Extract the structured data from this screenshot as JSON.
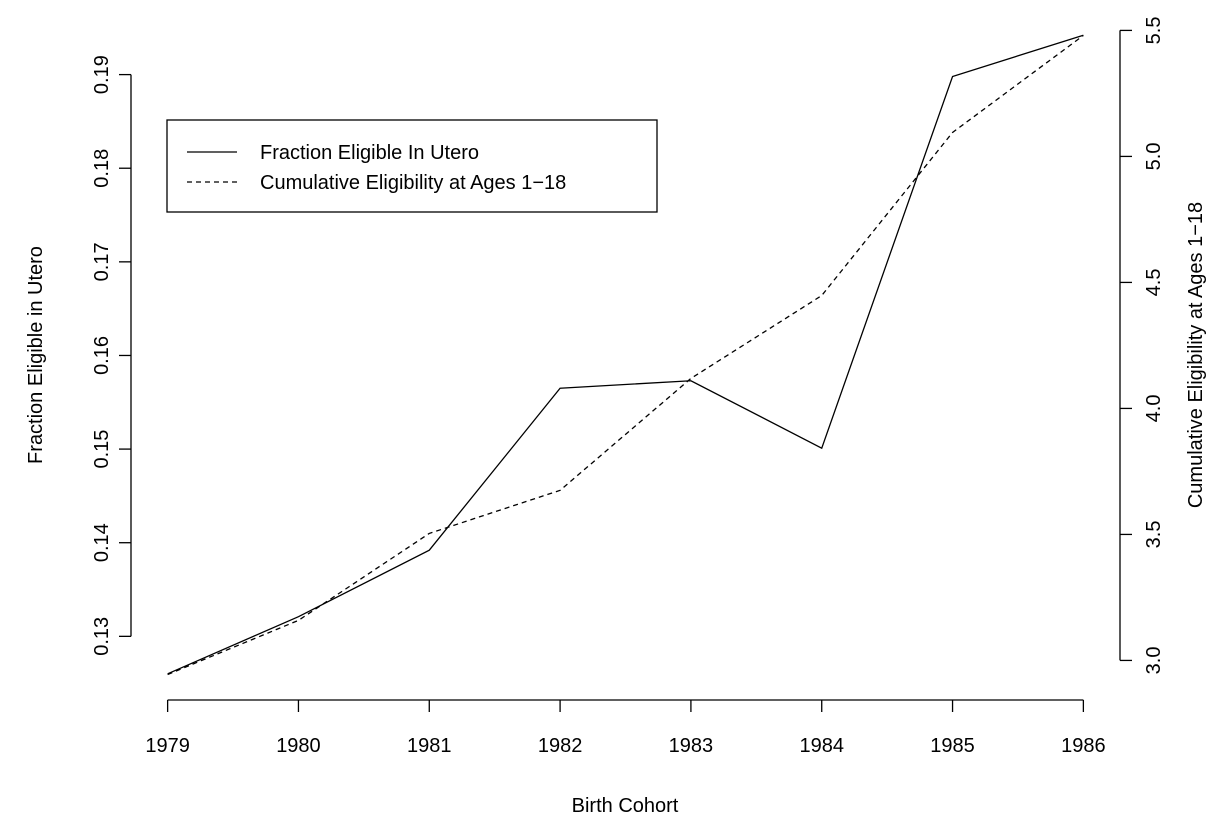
{
  "chart_data": {
    "type": "line",
    "x_label": "Birth Cohort",
    "y_label": "Fraction Eligible in Utero",
    "y2_label": "Cumulative Eligibility at Ages 1−18",
    "x": [
      1979,
      1980,
      1981,
      1982,
      1983,
      1984,
      1985,
      1986
    ],
    "xlim": [
      1978.72,
      1986.28
    ],
    "xticks": [
      1979,
      1980,
      1981,
      1982,
      1983,
      1984,
      1985,
      1986
    ],
    "ylim": [
      0.1232,
      0.1969
    ],
    "yticks": [
      0.13,
      0.14,
      0.15,
      0.16,
      0.17,
      0.18,
      0.19
    ],
    "y2lim": [
      2.843,
      5.581
    ],
    "y2ticks": [
      {
        "value": 3,
        "label": "3.0"
      },
      3.5,
      {
        "value": 4,
        "label": "4.0"
      },
      4.5,
      {
        "value": 5,
        "label": "5.0"
      },
      5.5
    ],
    "legend": "upper left",
    "series": [
      {
        "name": "Fraction Eligible In Utero",
        "color": "#000000",
        "linestyle": "solid",
        "values": [
          0.126,
          0.1321,
          0.1392,
          0.1565,
          0.1573,
          0.1501,
          0.1898,
          0.1942
        ]
      },
      {
        "name": "Cumulative Eligibility at Ages 1−18",
        "color": "#000000",
        "linestyle": "dashed",
        "axis": "y2",
        "values": [
          2.944,
          3.159,
          3.504,
          3.675,
          4.119,
          4.448,
          5.095,
          5.48
        ]
      }
    ]
  }
}
